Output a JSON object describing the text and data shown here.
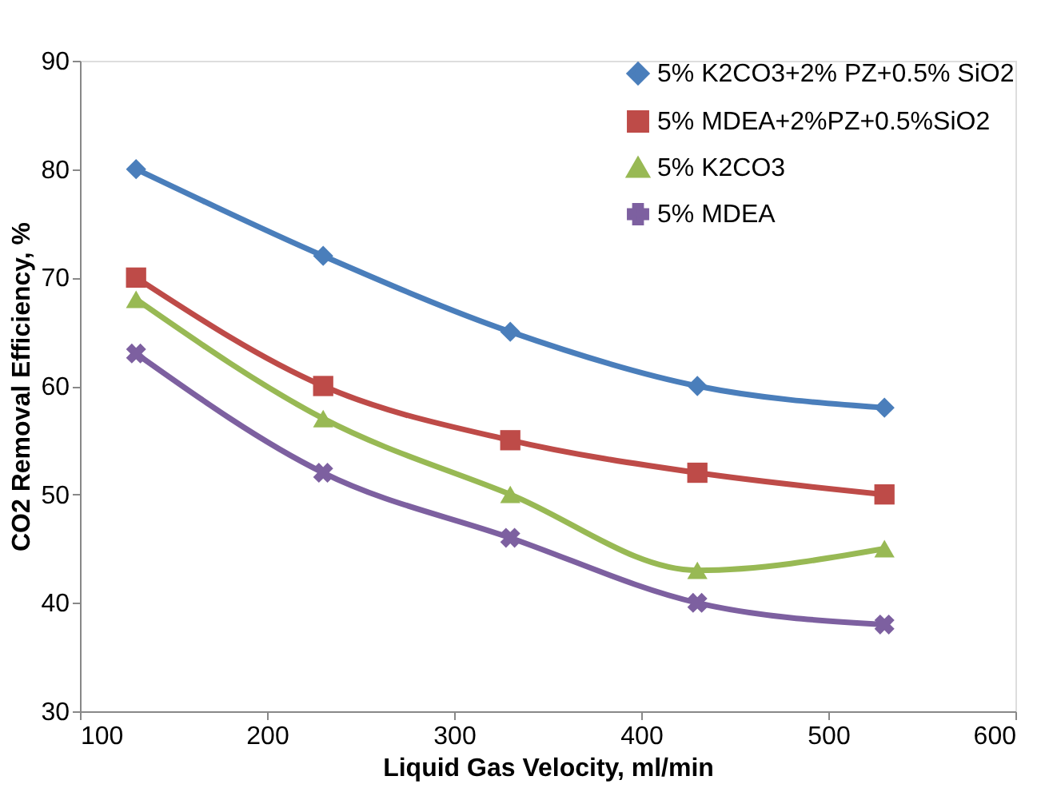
{
  "chart_data": {
    "type": "line",
    "xlabel": "Liquid Gas Velocity, ml/min",
    "ylabel": "CO2 Removal Efficiency, %",
    "x": [
      130,
      230,
      330,
      430,
      530
    ],
    "series": [
      {
        "name": "5% K2CO3+2% PZ+0.5% SiO2",
        "color": "#4a7ebb",
        "marker": "diamond",
        "values": [
          80,
          72,
          65,
          60,
          58
        ]
      },
      {
        "name": "5% MDEA+2%PZ+0.5%SiO2",
        "color": "#be4b48",
        "marker": "square",
        "values": [
          70,
          60,
          55,
          52,
          50
        ]
      },
      {
        "name": "5% K2CO3",
        "color": "#98b954",
        "marker": "triangle",
        "values": [
          68,
          57,
          50,
          43,
          45
        ]
      },
      {
        "name": "5% MDEA",
        "color": "#7d60a0",
        "marker": "cross",
        "values": [
          63,
          52,
          46,
          40,
          38
        ]
      }
    ],
    "xlim": [
      100,
      600
    ],
    "xticks": [
      100,
      200,
      300,
      400,
      500,
      600
    ],
    "ylim": [
      30,
      90
    ],
    "yticks": [
      30,
      40,
      50,
      60,
      70,
      80,
      90
    ],
    "grid": false,
    "legend": "top right",
    "line_style": "solid"
  }
}
